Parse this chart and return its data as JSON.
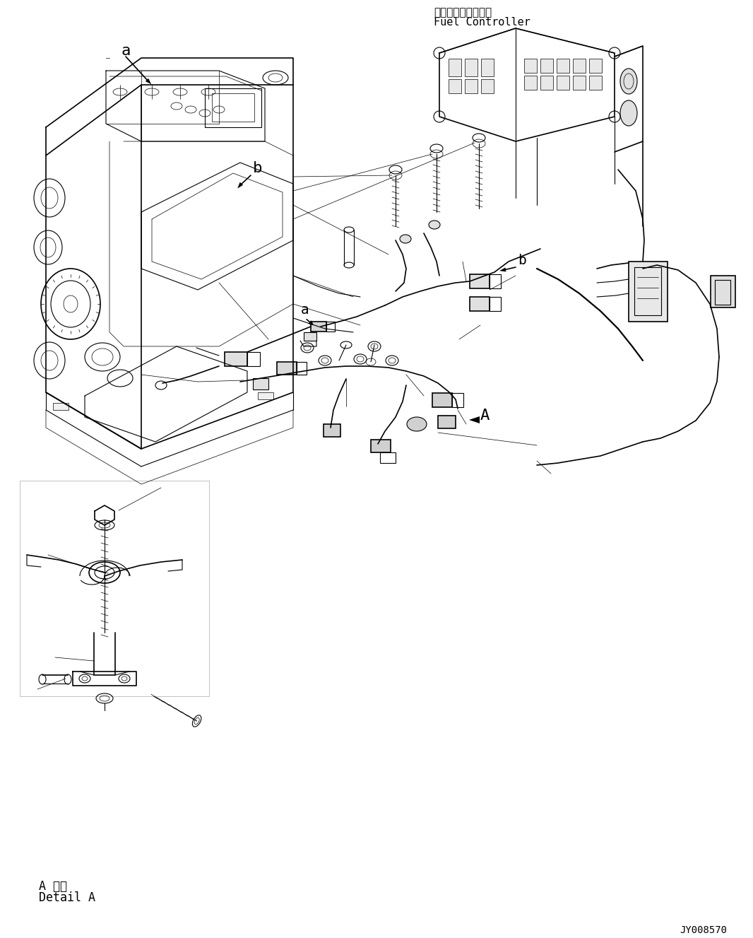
{
  "background_color": "#ffffff",
  "line_color": "#000000",
  "title_jp": "フェルコントローラ",
  "title_en": "Fuel Controller",
  "detail_label_jp": "A 詳細",
  "detail_label_en": "Detail A",
  "part_number": "JY008570",
  "fig_width": 10.66,
  "fig_height": 13.27,
  "dpi": 100
}
